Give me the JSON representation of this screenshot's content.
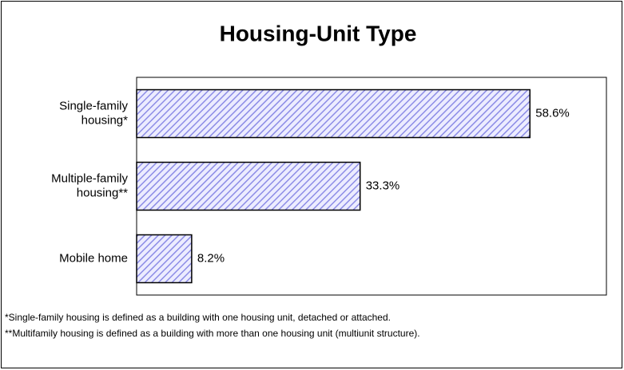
{
  "chart_data": {
    "type": "bar",
    "orientation": "horizontal",
    "title": "Housing-Unit Type",
    "categories": [
      "Single-family\nhousing*",
      "Multiple-family\nhousing**",
      "Mobile home"
    ],
    "values": [
      58.6,
      33.3,
      8.2
    ],
    "value_labels": [
      "58.6%",
      "33.3%",
      "8.2%"
    ],
    "color": "#8c8ce6",
    "xlim": [
      0,
      70
    ],
    "footnotes": [
      "*Single-family housing is defined as a building with one housing unit, detached or attached.",
      "**Multifamily housing is defined as a  building with more than one housing unit (multiunit structure)."
    ]
  }
}
